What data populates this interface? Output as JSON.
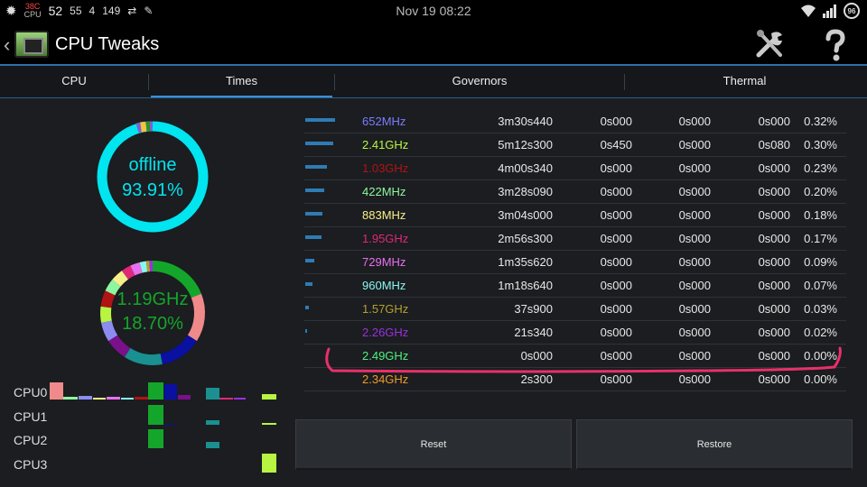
{
  "status_bar": {
    "temp_icon": "temperature-icon",
    "temp_top": "38C",
    "temp_bottom": "CPU",
    "num_a": "52",
    "num_b": "55",
    "num_c": "4",
    "num_d": "149",
    "time": "Nov 19 08:22",
    "battery": "96"
  },
  "app": {
    "title": "CPU Tweaks",
    "tools_icon": "tools-icon",
    "help_icon": "help-icon"
  },
  "tabs": [
    {
      "label": "CPU"
    },
    {
      "label": "Times"
    },
    {
      "label": "Governors"
    },
    {
      "label": "Thermal"
    }
  ],
  "summary": {
    "state_label": "offline",
    "state_percent": "93.91%",
    "top_freq": "1.19GHz",
    "top_freq_percent": "18.70%",
    "ring_color": "#00e5f0",
    "freq_color": "#14a62a"
  },
  "cpus": [
    {
      "label": "CPU0"
    },
    {
      "label": "CPU1"
    },
    {
      "label": "CPU2"
    },
    {
      "label": "CPU3"
    }
  ],
  "table": {
    "partial_top_row": {
      "freq": "652MHz",
      "time": "3m30s440",
      "a": "0s000",
      "b": "0s000",
      "c": "0s000",
      "p": "0.32%",
      "color": "#7c7cff",
      "bar": 0.55
    },
    "rows": [
      {
        "freq": "2.41GHz",
        "time": "5m12s300",
        "a": "0s450",
        "b": "0s000",
        "c": "0s080",
        "p": "0.30%",
        "color": "#b7f542",
        "bar": 0.52
      },
      {
        "freq": "1.03GHz",
        "time": "4m00s340",
        "a": "0s000",
        "b": "0s000",
        "c": "0s000",
        "p": "0.23%",
        "color": "#b01414",
        "bar": 0.4
      },
      {
        "freq": "422MHz",
        "time": "3m28s090",
        "a": "0s000",
        "b": "0s000",
        "c": "0s000",
        "p": "0.20%",
        "color": "#8ef5a0",
        "bar": 0.35
      },
      {
        "freq": "883MHz",
        "time": "3m04s000",
        "a": "0s000",
        "b": "0s000",
        "c": "0s000",
        "p": "0.18%",
        "color": "#f5f08a",
        "bar": 0.31
      },
      {
        "freq": "1.95GHz",
        "time": "2m56s300",
        "a": "0s000",
        "b": "0s000",
        "c": "0s000",
        "p": "0.17%",
        "color": "#e0287a",
        "bar": 0.3
      },
      {
        "freq": "729MHz",
        "time": "1m35s620",
        "a": "0s000",
        "b": "0s000",
        "c": "0s000",
        "p": "0.09%",
        "color": "#e870f0",
        "bar": 0.16
      },
      {
        "freq": "960MHz",
        "time": "1m18s640",
        "a": "0s000",
        "b": "0s000",
        "c": "0s000",
        "p": "0.07%",
        "color": "#8af5f0",
        "bar": 0.13
      },
      {
        "freq": "1.57GHz",
        "time": "37s900",
        "a": "0s000",
        "b": "0s000",
        "c": "0s000",
        "p": "0.03%",
        "color": "#b5a030",
        "bar": 0.06
      },
      {
        "freq": "2.26GHz",
        "time": "21s340",
        "a": "0s000",
        "b": "0s000",
        "c": "0s000",
        "p": "0.02%",
        "color": "#9b30e0",
        "bar": 0.035
      },
      {
        "freq": "2.49GHz",
        "time": "0s000",
        "a": "0s000",
        "b": "0s000",
        "c": "0s000",
        "p": "0.00%",
        "color": "#50f080",
        "bar": 0
      },
      {
        "freq": "2.34GHz",
        "time": "2s300",
        "a": "0s000",
        "b": "0s000",
        "c": "0s000",
        "p": "0.00%",
        "color": "#f09a2a",
        "bar": 0
      }
    ]
  },
  "buttons": {
    "reset": "Reset",
    "restore": "Restore"
  }
}
